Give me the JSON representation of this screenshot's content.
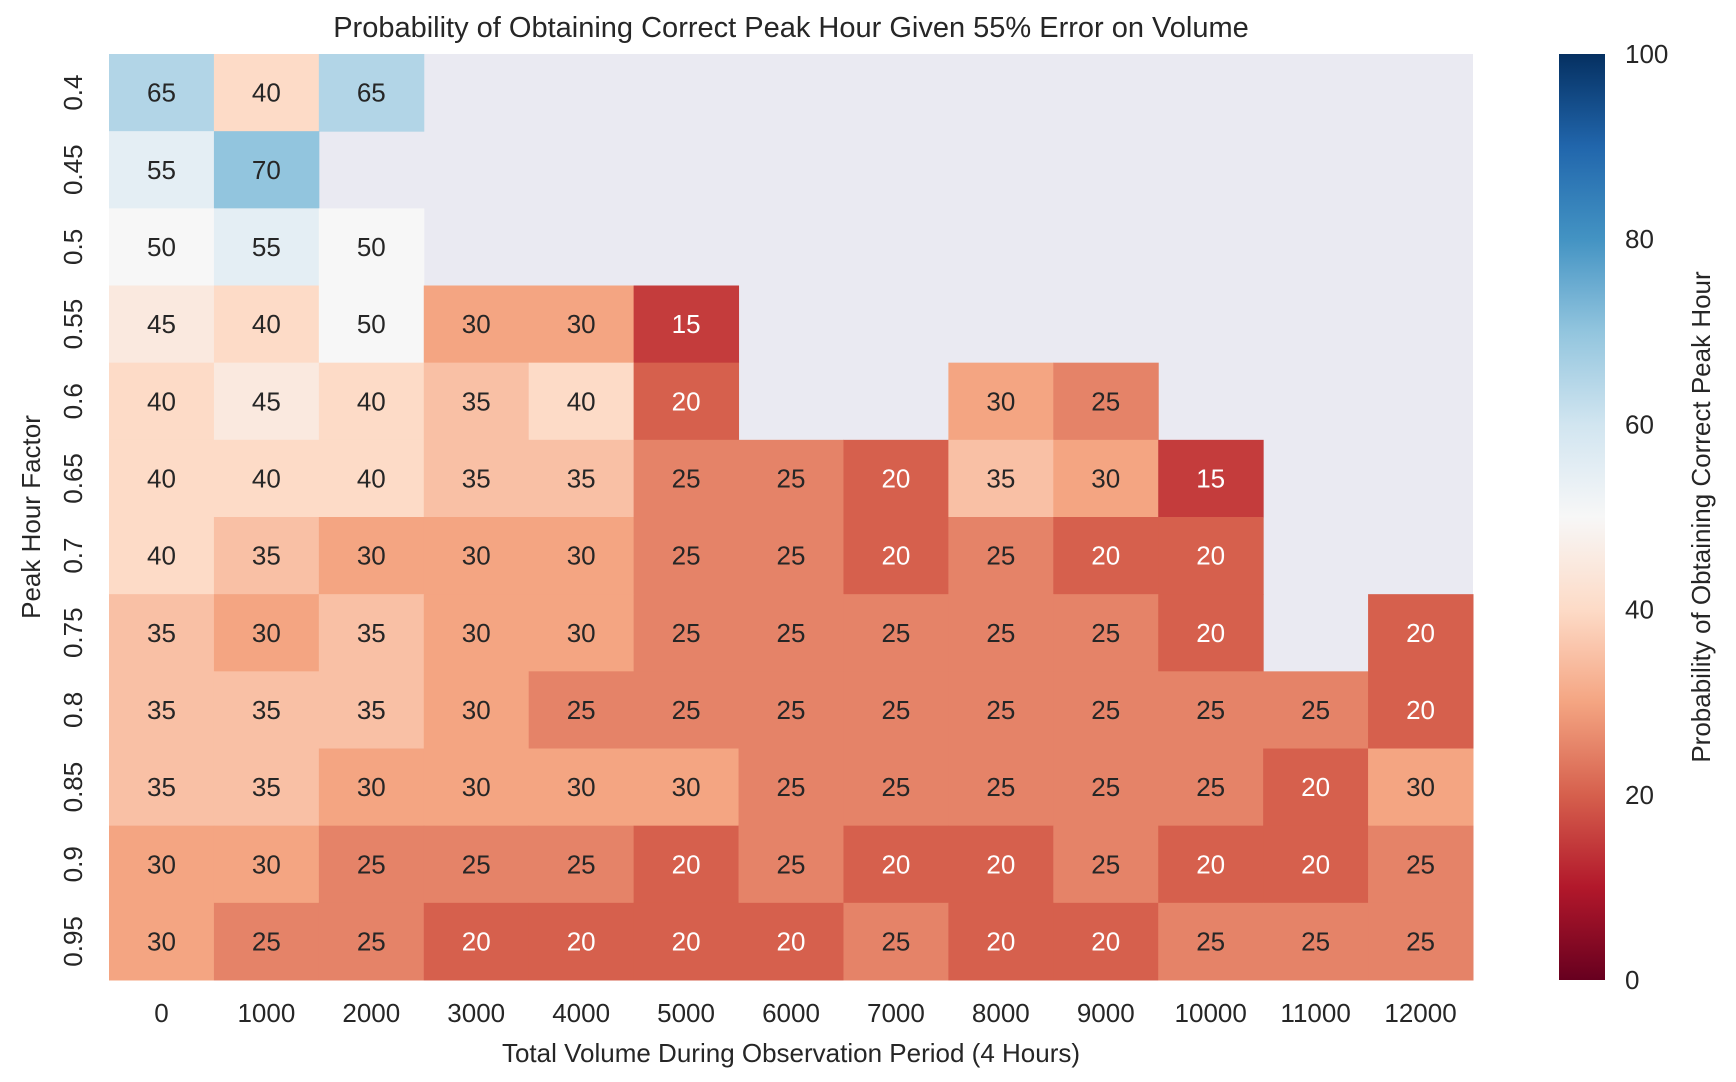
{
  "chart_data": {
    "type": "heatmap",
    "title": "Probability of Obtaining Correct Peak Hour Given 55% Error on Volume",
    "xlabel": "Total Volume During Observation Period (4 Hours)",
    "ylabel": "Peak Hour Factor",
    "x_categories": [
      "0",
      "1000",
      "2000",
      "3000",
      "4000",
      "5000",
      "6000",
      "7000",
      "8000",
      "9000",
      "10000",
      "11000",
      "12000"
    ],
    "y_categories": [
      "0.4",
      "0.45",
      "0.5",
      "0.55",
      "0.6",
      "0.65",
      "0.7",
      "0.75",
      "0.8",
      "0.85",
      "0.9",
      "0.95"
    ],
    "values": [
      [
        65,
        40,
        65,
        null,
        null,
        null,
        null,
        null,
        null,
        null,
        null,
        null,
        null
      ],
      [
        55,
        70,
        null,
        null,
        null,
        null,
        null,
        null,
        null,
        null,
        null,
        null,
        null
      ],
      [
        50,
        55,
        50,
        null,
        null,
        null,
        null,
        null,
        null,
        null,
        null,
        null,
        null
      ],
      [
        45,
        40,
        50,
        30,
        30,
        15,
        null,
        null,
        null,
        null,
        null,
        null,
        null
      ],
      [
        40,
        45,
        40,
        35,
        40,
        20,
        null,
        null,
        30,
        25,
        null,
        null,
        null
      ],
      [
        40,
        40,
        40,
        35,
        35,
        25,
        25,
        20,
        35,
        30,
        15,
        null,
        null
      ],
      [
        40,
        35,
        30,
        30,
        30,
        25,
        25,
        20,
        25,
        20,
        20,
        null,
        null
      ],
      [
        35,
        30,
        35,
        30,
        30,
        25,
        25,
        25,
        25,
        25,
        20,
        null,
        20
      ],
      [
        35,
        35,
        35,
        30,
        25,
        25,
        25,
        25,
        25,
        25,
        25,
        25,
        20
      ],
      [
        35,
        35,
        30,
        30,
        30,
        30,
        25,
        25,
        25,
        25,
        25,
        20,
        30
      ],
      [
        30,
        30,
        25,
        25,
        25,
        20,
        25,
        20,
        20,
        25,
        20,
        20,
        25
      ],
      [
        30,
        25,
        25,
        20,
        20,
        20,
        20,
        25,
        20,
        20,
        25,
        25,
        25
      ]
    ],
    "annotated": true,
    "colormap": "RdBu",
    "vmin": 0,
    "vmax": 100,
    "missing_color": "#eaeaf2",
    "grid": false,
    "colorbar": {
      "label": "Probability of Obtaining Correct Peak Hour",
      "ticks": [
        "0",
        "20",
        "40",
        "60",
        "80",
        "100"
      ],
      "position": "right"
    }
  }
}
